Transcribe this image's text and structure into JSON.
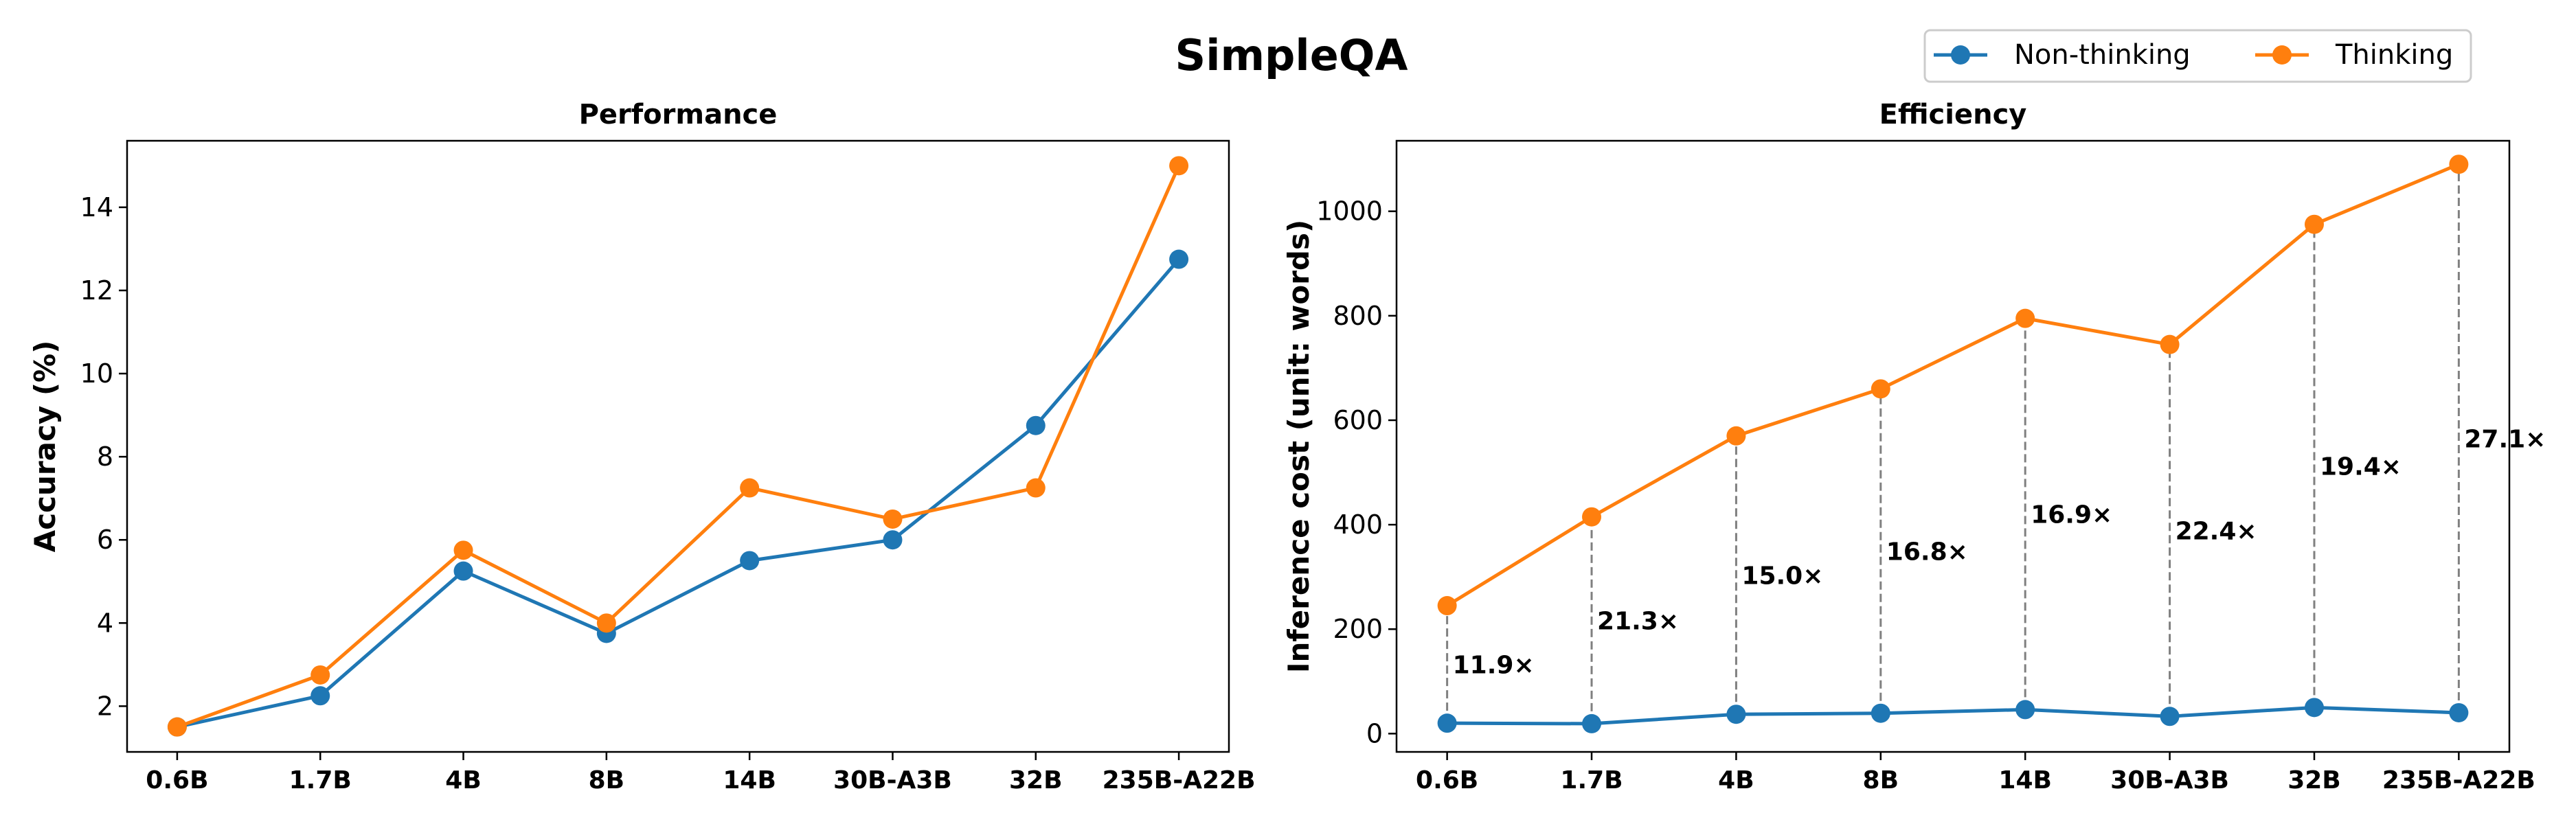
{
  "suptitle": "SimpleQA",
  "colors": {
    "non_thinking": "#1f77b4",
    "thinking": "#ff7f0e",
    "connector": "#808080"
  },
  "legend": {
    "position": "top-right",
    "entries": [
      "Non-thinking",
      "Thinking"
    ]
  },
  "chart_data": [
    {
      "type": "line",
      "title": "Performance",
      "xlabel": "",
      "ylabel": "Accuracy (%)",
      "categories": [
        "0.6B",
        "1.7B",
        "4B",
        "8B",
        "14B",
        "30B-A3B",
        "32B",
        "235B-A22B"
      ],
      "ylim": [
        0.9,
        15.6
      ],
      "yticks": [
        2,
        4,
        6,
        8,
        10,
        12,
        14
      ],
      "grid": false,
      "series": [
        {
          "name": "Non-thinking",
          "values": [
            1.5,
            2.25,
            5.25,
            3.75,
            5.5,
            6.0,
            8.75,
            12.75
          ]
        },
        {
          "name": "Thinking",
          "values": [
            1.5,
            2.75,
            5.75,
            4.0,
            7.25,
            6.5,
            7.25,
            15.0
          ]
        }
      ]
    },
    {
      "type": "line",
      "title": "Efficiency",
      "xlabel": "",
      "ylabel": "Inference cost (unit: words)",
      "categories": [
        "0.6B",
        "1.7B",
        "4B",
        "8B",
        "14B",
        "30B-A3B",
        "32B",
        "235B-A22B"
      ],
      "ylim": [
        -35,
        1135
      ],
      "yticks": [
        0,
        200,
        400,
        600,
        800,
        1000
      ],
      "grid": false,
      "series": [
        {
          "name": "Non-thinking",
          "values": [
            20,
            19,
            37,
            39,
            46,
            33,
            50,
            40
          ]
        },
        {
          "name": "Thinking",
          "values": [
            245,
            415,
            570,
            660,
            795,
            745,
            975,
            1090
          ]
        }
      ],
      "ratio_labels": [
        "11.9×",
        "21.3×",
        "15.0×",
        "16.8×",
        "16.9×",
        "22.4×",
        "19.4×",
        "27.1×"
      ]
    }
  ]
}
